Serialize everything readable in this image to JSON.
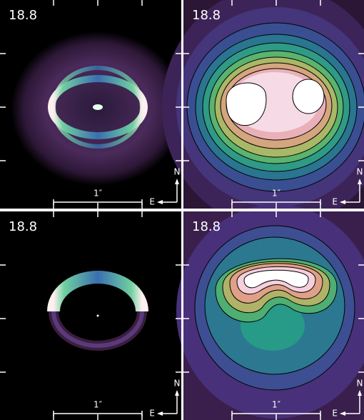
{
  "panels": [
    {
      "label": "18.8",
      "scale_label": "1″",
      "north": "N",
      "east": "E"
    },
    {
      "label": "18.8",
      "scale_label": "1″",
      "north": "N",
      "east": "E"
    },
    {
      "label": "18.8",
      "scale_label": "1″",
      "north": "N",
      "east": "E"
    },
    {
      "label": "18.8",
      "scale_label": "1″",
      "north": "N",
      "east": "E"
    }
  ]
}
